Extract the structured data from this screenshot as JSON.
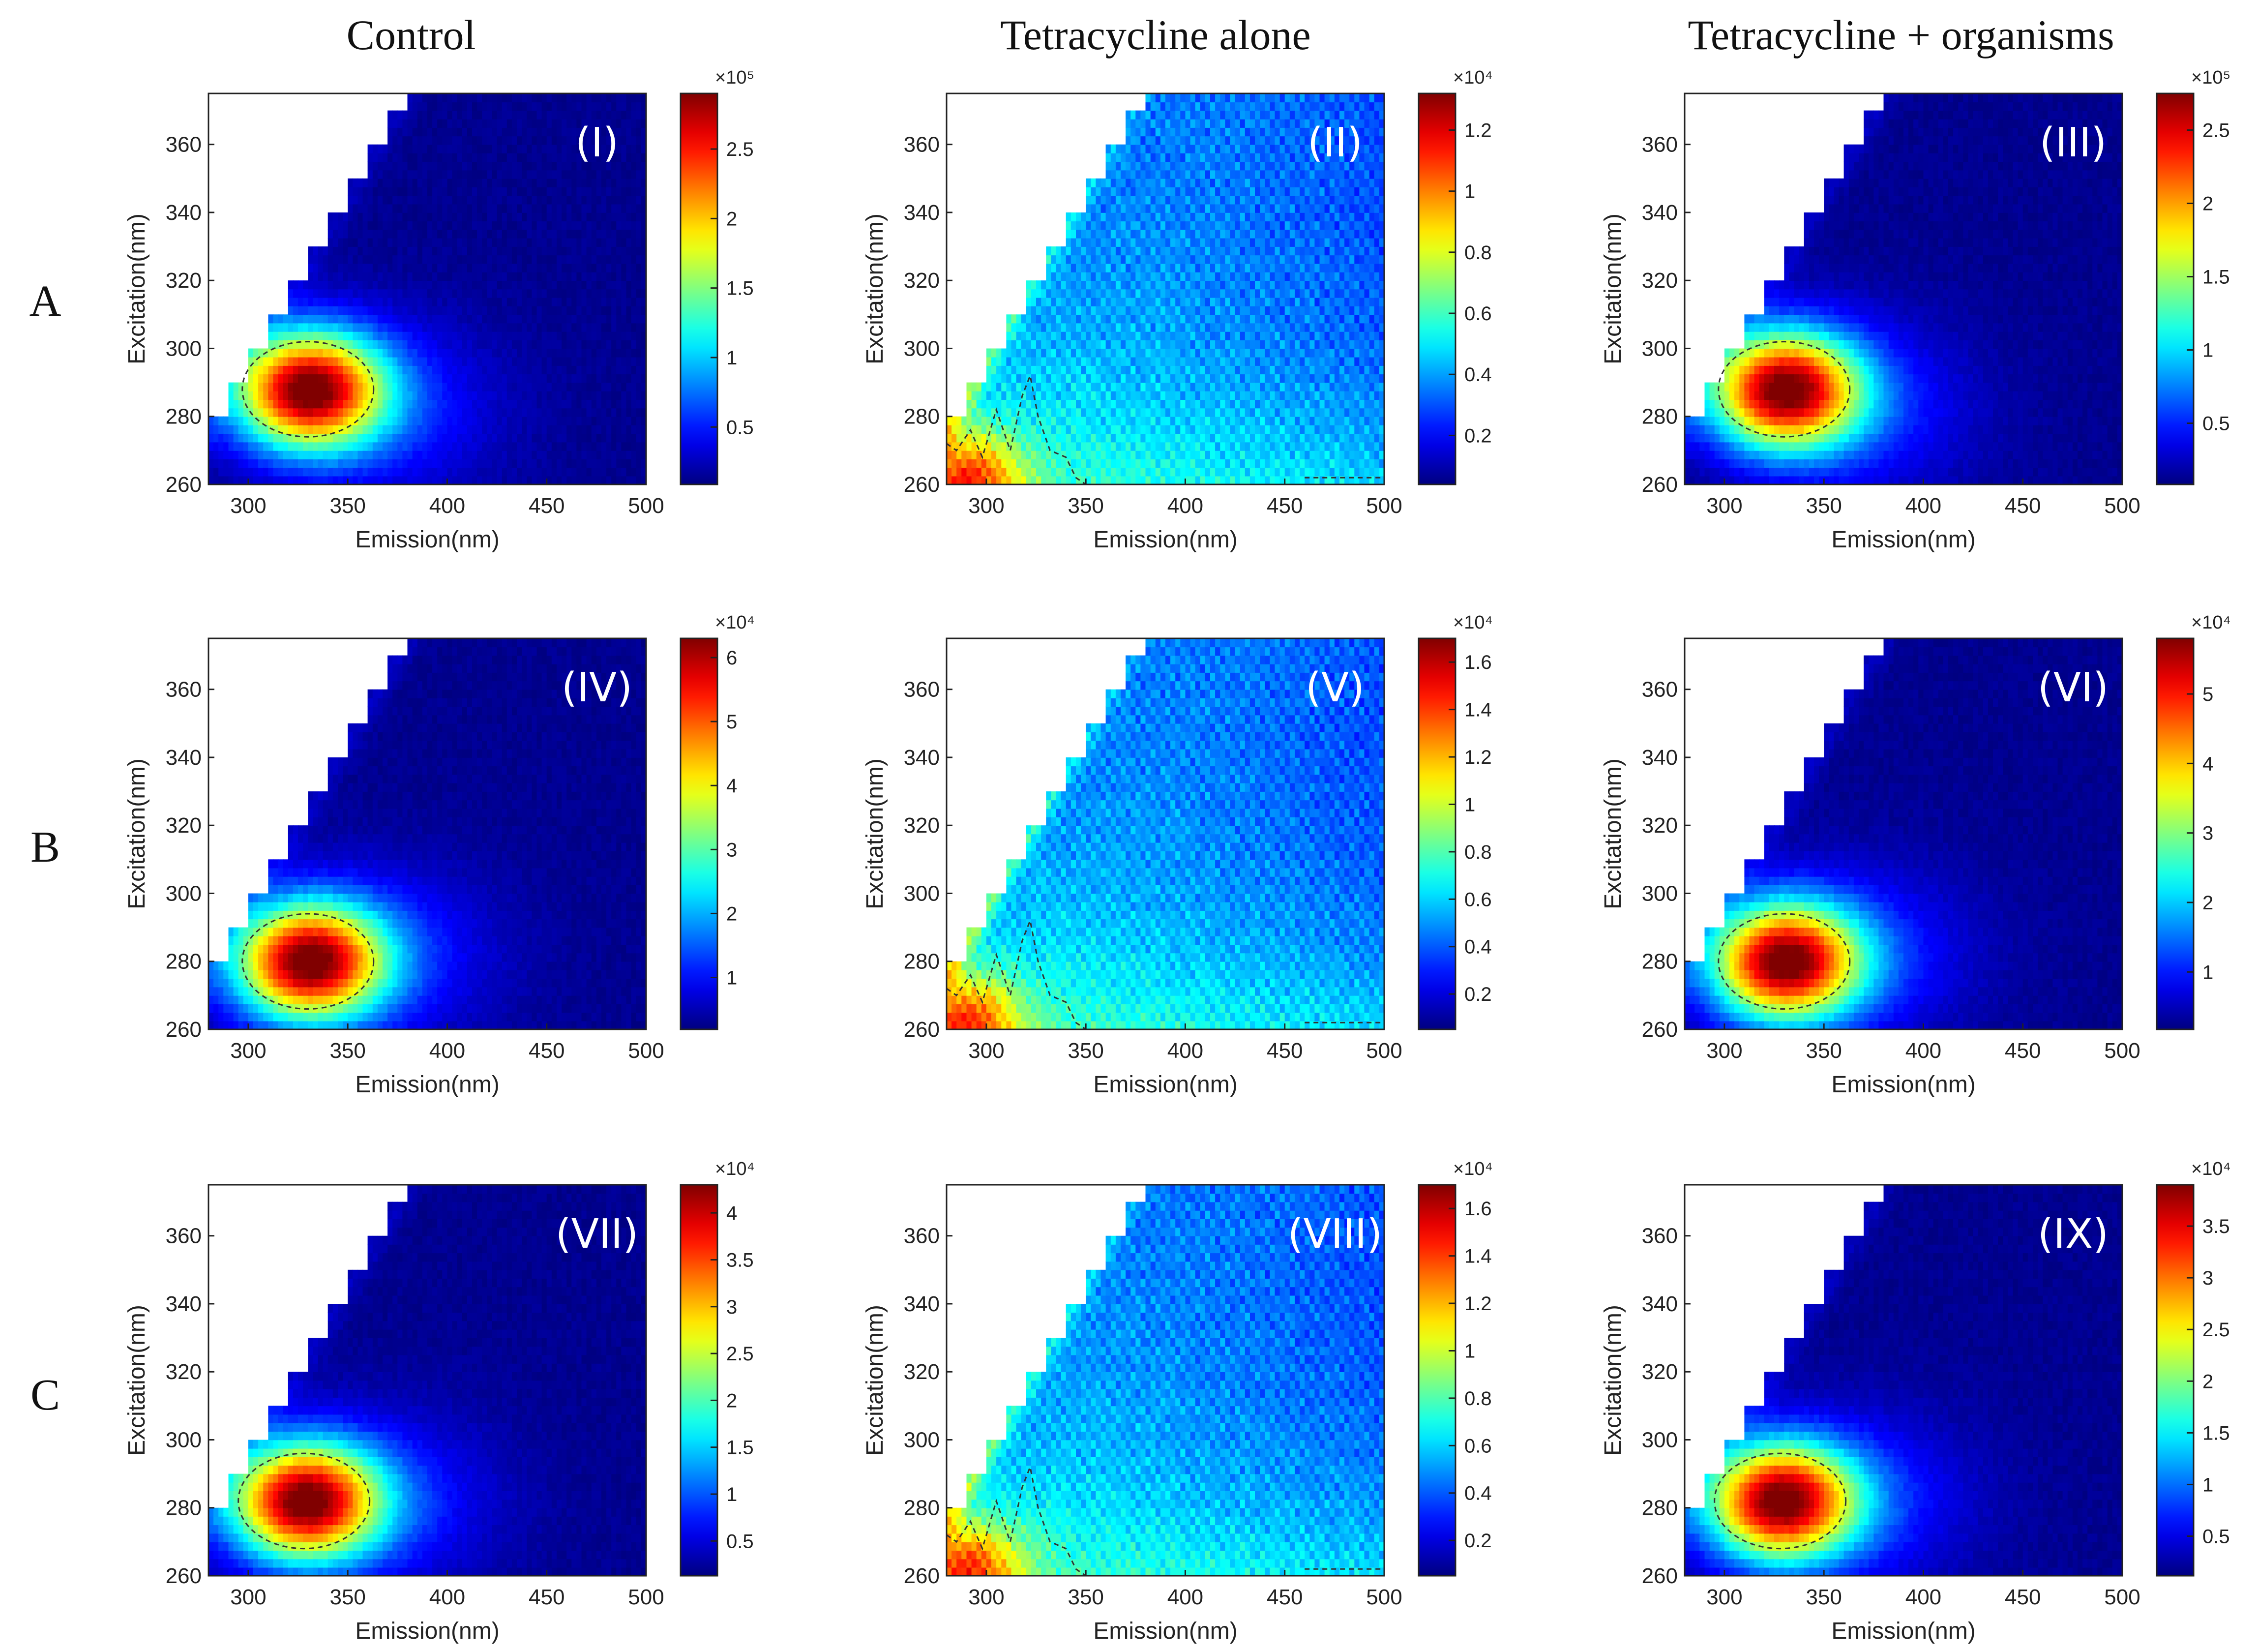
{
  "figure": {
    "column_titles": [
      "Control",
      "Tetracycline alone",
      "Tetracycline + organisms"
    ],
    "row_labels": [
      "A",
      "B",
      "C"
    ]
  },
  "chart_data": [
    {
      "type": "heatmap",
      "panel_label": "(I)",
      "row": "A",
      "column": "Control",
      "xlabel": "Emission(nm)",
      "ylabel": "Excitation(nm)",
      "xlim": [
        280,
        500
      ],
      "ylim": [
        260,
        375
      ],
      "xticks": [
        "300",
        "350",
        "400",
        "450",
        "500"
      ],
      "yticks": [
        "260",
        "280",
        "300",
        "320",
        "340",
        "360"
      ],
      "colorbar_exponent": "×10⁵",
      "colorbar_max": 2.9,
      "colorbar_ticks": [
        "0.5",
        "1",
        "1.5",
        "2",
        "2.5"
      ],
      "peak": {
        "emission": 330,
        "excitation": 288,
        "intensity": 2.9
      },
      "pattern": "protein"
    },
    {
      "type": "heatmap",
      "panel_label": "(II)",
      "row": "A",
      "column": "Tetracycline alone",
      "xlabel": "Emission(nm)",
      "ylabel": "Excitation(nm)",
      "xlim": [
        280,
        500
      ],
      "ylim": [
        260,
        375
      ],
      "xticks": [
        "300",
        "350",
        "400",
        "450",
        "500"
      ],
      "yticks": [
        "260",
        "280",
        "300",
        "320",
        "340",
        "360"
      ],
      "colorbar_exponent": "×10⁴",
      "colorbar_max": 1.32,
      "colorbar_ticks": [
        "0.2",
        "0.4",
        "0.6",
        "0.8",
        "1",
        "1.2"
      ],
      "peak": {
        "emission": 285,
        "excitation": 262,
        "intensity": 1.3
      },
      "pattern": "tetracycline"
    },
    {
      "type": "heatmap",
      "panel_label": "(III)",
      "row": "A",
      "column": "Tetracycline + organisms",
      "xlabel": "Emission(nm)",
      "ylabel": "Excitation(nm)",
      "xlim": [
        280,
        500
      ],
      "ylim": [
        260,
        375
      ],
      "xticks": [
        "300",
        "350",
        "400",
        "450",
        "500"
      ],
      "yticks": [
        "260",
        "280",
        "300",
        "320",
        "340",
        "360"
      ],
      "colorbar_exponent": "×10⁵",
      "colorbar_max": 2.75,
      "colorbar_ticks": [
        "0.5",
        "1",
        "1.5",
        "2",
        "2.5"
      ],
      "peak": {
        "emission": 330,
        "excitation": 288,
        "intensity": 2.75
      },
      "pattern": "protein"
    },
    {
      "type": "heatmap",
      "panel_label": "(IV)",
      "row": "B",
      "column": "Control",
      "xlabel": "Emission(nm)",
      "ylabel": "Excitation(nm)",
      "xlim": [
        280,
        500
      ],
      "ylim": [
        260,
        375
      ],
      "xticks": [
        "300",
        "350",
        "400",
        "450",
        "500"
      ],
      "yticks": [
        "260",
        "280",
        "300",
        "320",
        "340",
        "360"
      ],
      "colorbar_exponent": "×10⁴",
      "colorbar_max": 6.3,
      "colorbar_ticks": [
        "1",
        "2",
        "3",
        "4",
        "5",
        "6"
      ],
      "peak": {
        "emission": 330,
        "excitation": 280,
        "intensity": 6.3
      },
      "pattern": "protein"
    },
    {
      "type": "heatmap",
      "panel_label": "(V)",
      "row": "B",
      "column": "Tetracycline alone",
      "xlabel": "Emission(nm)",
      "ylabel": "Excitation(nm)",
      "xlim": [
        280,
        500
      ],
      "ylim": [
        260,
        375
      ],
      "xticks": [
        "300",
        "350",
        "400",
        "450",
        "500"
      ],
      "yticks": [
        "260",
        "280",
        "300",
        "320",
        "340",
        "360"
      ],
      "colorbar_exponent": "×10⁴",
      "colorbar_max": 1.7,
      "colorbar_ticks": [
        "0.2",
        "0.4",
        "0.6",
        "0.8",
        "1",
        "1.2",
        "1.4",
        "1.6"
      ],
      "peak": {
        "emission": 285,
        "excitation": 262,
        "intensity": 1.65
      },
      "pattern": "tetracycline"
    },
    {
      "type": "heatmap",
      "panel_label": "(VI)",
      "row": "B",
      "column": "Tetracycline + organisms",
      "xlabel": "Emission(nm)",
      "ylabel": "Excitation(nm)",
      "xlim": [
        280,
        500
      ],
      "ylim": [
        260,
        375
      ],
      "xticks": [
        "300",
        "350",
        "400",
        "450",
        "500"
      ],
      "yticks": [
        "260",
        "280",
        "300",
        "320",
        "340",
        "360"
      ],
      "colorbar_exponent": "×10⁴",
      "colorbar_max": 5.8,
      "colorbar_ticks": [
        "1",
        "2",
        "3",
        "4",
        "5"
      ],
      "peak": {
        "emission": 330,
        "excitation": 280,
        "intensity": 5.8
      },
      "pattern": "protein"
    },
    {
      "type": "heatmap",
      "panel_label": "(VII)",
      "row": "C",
      "column": "Control",
      "xlabel": "Emission(nm)",
      "ylabel": "Excitation(nm)",
      "xlim": [
        280,
        500
      ],
      "ylim": [
        260,
        375
      ],
      "xticks": [
        "300",
        "350",
        "400",
        "450",
        "500"
      ],
      "yticks": [
        "260",
        "280",
        "300",
        "320",
        "340",
        "360"
      ],
      "colorbar_exponent": "×10⁴",
      "colorbar_max": 4.3,
      "colorbar_ticks": [
        "0.5",
        "1",
        "1.5",
        "2",
        "2.5",
        "3",
        "3.5",
        "4"
      ],
      "peak": {
        "emission": 328,
        "excitation": 282,
        "intensity": 4.3
      },
      "pattern": "protein"
    },
    {
      "type": "heatmap",
      "panel_label": "(VIII)",
      "row": "C",
      "column": "Tetracycline alone",
      "xlabel": "Emission(nm)",
      "ylabel": "Excitation(nm)",
      "xlim": [
        280,
        500
      ],
      "ylim": [
        260,
        375
      ],
      "xticks": [
        "300",
        "350",
        "400",
        "450",
        "500"
      ],
      "yticks": [
        "260",
        "280",
        "300",
        "320",
        "340",
        "360"
      ],
      "colorbar_exponent": "×10⁴",
      "colorbar_max": 1.7,
      "colorbar_ticks": [
        "0.2",
        "0.4",
        "0.6",
        "0.8",
        "1",
        "1.2",
        "1.4",
        "1.6"
      ],
      "peak": {
        "emission": 285,
        "excitation": 262,
        "intensity": 1.65
      },
      "pattern": "tetracycline"
    },
    {
      "type": "heatmap",
      "panel_label": "(IX)",
      "row": "C",
      "column": "Tetracycline + organisms",
      "xlabel": "Emission(nm)",
      "ylabel": "Excitation(nm)",
      "xlim": [
        280,
        500
      ],
      "ylim": [
        260,
        375
      ],
      "xticks": [
        "300",
        "350",
        "400",
        "450",
        "500"
      ],
      "yticks": [
        "260",
        "280",
        "300",
        "320",
        "340",
        "360"
      ],
      "colorbar_exponent": "×10⁴",
      "colorbar_max": 3.9,
      "colorbar_ticks": [
        "0.5",
        "1",
        "1.5",
        "2",
        "2.5",
        "3",
        "3.5"
      ],
      "peak": {
        "emission": 328,
        "excitation": 282,
        "intensity": 3.9
      },
      "pattern": "protein"
    }
  ]
}
